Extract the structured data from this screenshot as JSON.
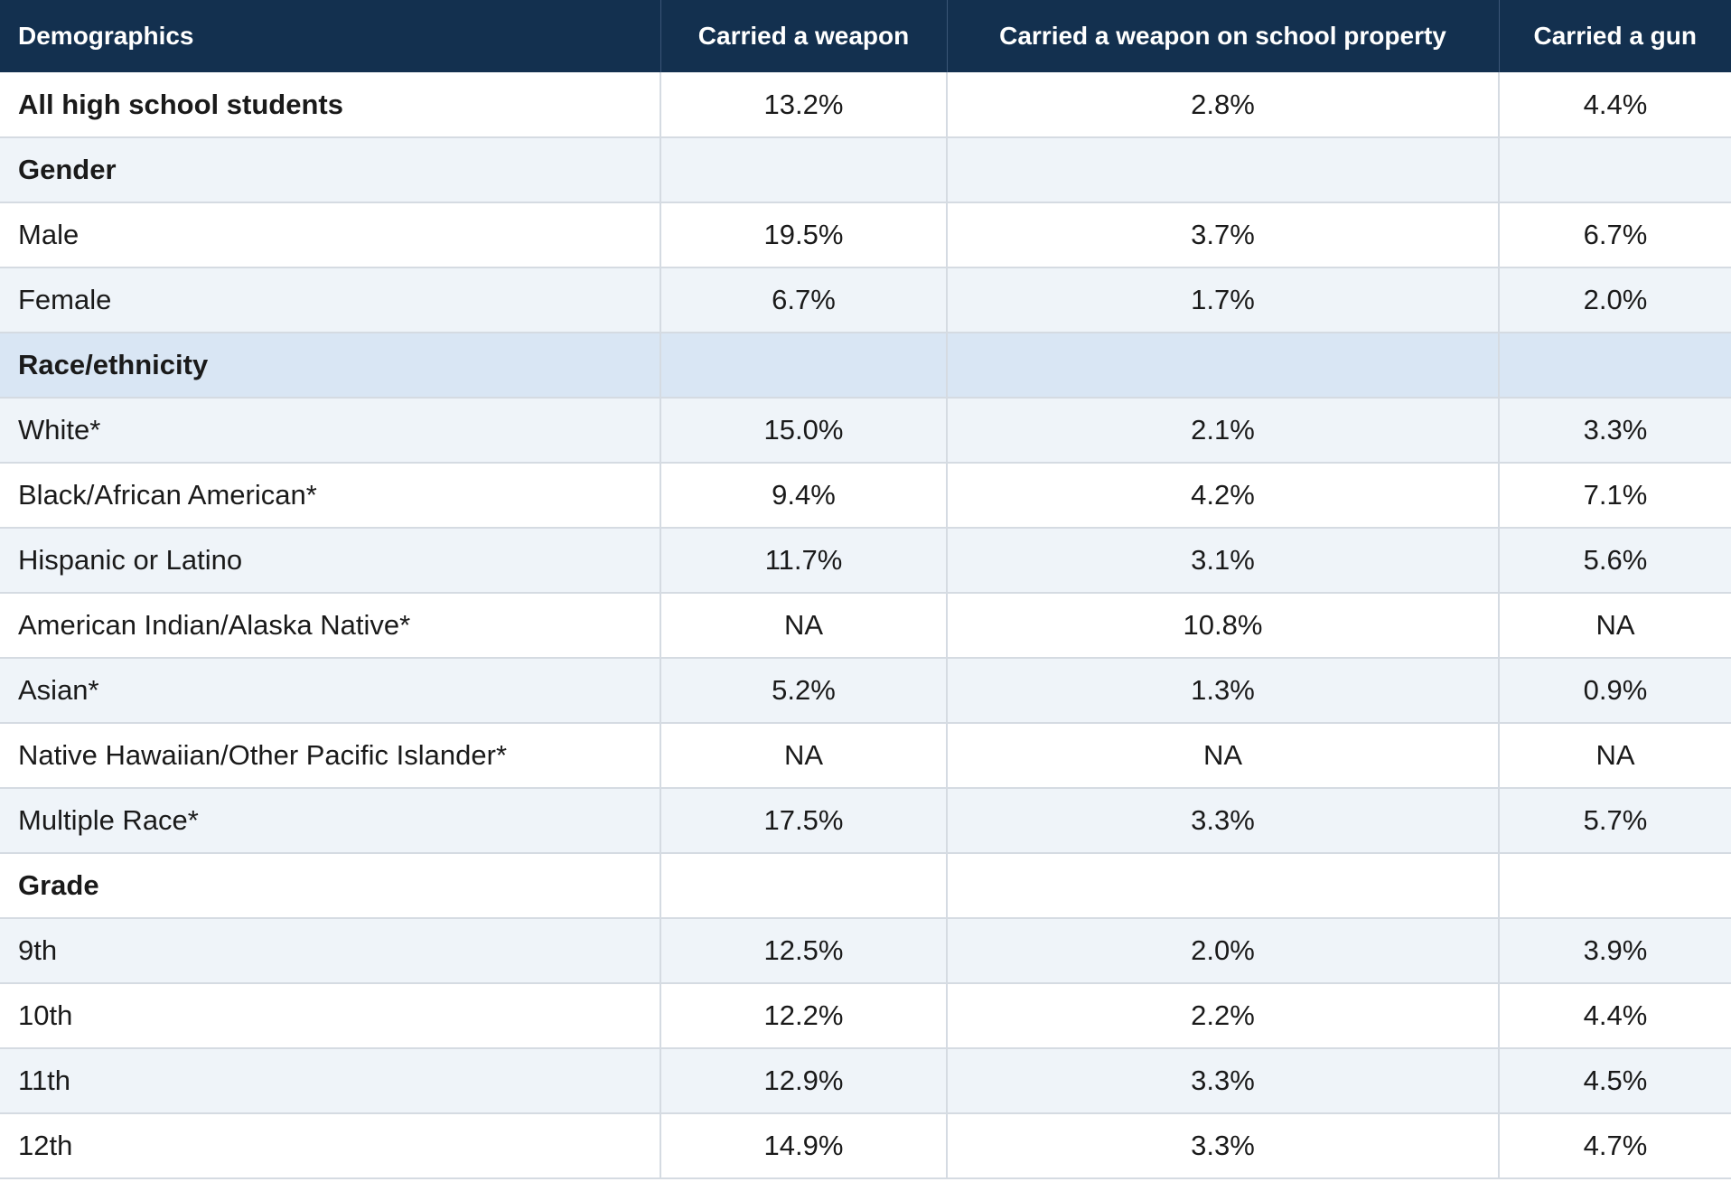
{
  "table": {
    "headers": [
      "Demographics",
      "Carried a weapon",
      "Carried a weapon on school property",
      "Carried a gun"
    ],
    "rows": [
      {
        "label": "All high school students",
        "values": [
          "13.2%",
          "2.8%",
          "4.4%"
        ],
        "bold": true,
        "shade": "white"
      },
      {
        "label": "Gender",
        "values": [
          "",
          "",
          ""
        ],
        "bold": true,
        "shade": "alt"
      },
      {
        "label": "Male",
        "values": [
          "19.5%",
          "3.7%",
          "6.7%"
        ],
        "bold": false,
        "shade": "white"
      },
      {
        "label": "Female",
        "values": [
          "6.7%",
          "1.7%",
          "2.0%"
        ],
        "bold": false,
        "shade": "alt"
      },
      {
        "label": "Race/ethnicity",
        "values": [
          "",
          "",
          ""
        ],
        "bold": true,
        "shade": "blue"
      },
      {
        "label": "White*",
        "values": [
          "15.0%",
          "2.1%",
          "3.3%"
        ],
        "bold": false,
        "shade": "alt"
      },
      {
        "label": "Black/African American*",
        "values": [
          "9.4%",
          "4.2%",
          "7.1%"
        ],
        "bold": false,
        "shade": "white"
      },
      {
        "label": "Hispanic or Latino",
        "values": [
          "11.7%",
          "3.1%",
          "5.6%"
        ],
        "bold": false,
        "shade": "alt"
      },
      {
        "label": "American Indian/Alaska Native*",
        "values": [
          "NA",
          "10.8%",
          "NA"
        ],
        "bold": false,
        "shade": "white"
      },
      {
        "label": "Asian*",
        "values": [
          "5.2%",
          "1.3%",
          "0.9%"
        ],
        "bold": false,
        "shade": "alt"
      },
      {
        "label": "Native Hawaiian/Other Pacific Islander*",
        "values": [
          "NA",
          "NA",
          "NA"
        ],
        "bold": false,
        "shade": "white"
      },
      {
        "label": "Multiple Race*",
        "values": [
          "17.5%",
          "3.3%",
          "5.7%"
        ],
        "bold": false,
        "shade": "alt"
      },
      {
        "label": "Grade",
        "values": [
          "",
          "",
          ""
        ],
        "bold": true,
        "shade": "white"
      },
      {
        "label": "9th",
        "values": [
          "12.5%",
          "2.0%",
          "3.9%"
        ],
        "bold": false,
        "shade": "alt"
      },
      {
        "label": "10th",
        "values": [
          "12.2%",
          "2.2%",
          "4.4%"
        ],
        "bold": false,
        "shade": "white"
      },
      {
        "label": "11th",
        "values": [
          "12.9%",
          "3.3%",
          "4.5%"
        ],
        "bold": false,
        "shade": "alt"
      },
      {
        "label": "12th",
        "values": [
          "14.9%",
          "3.3%",
          "4.7%"
        ],
        "bold": false,
        "shade": "white"
      }
    ]
  },
  "colors": {
    "header_bg": "#13304f",
    "header_text": "#ffffff",
    "row_alt_bg": "#eff4f9",
    "row_highlight_bg": "#d9e6f4",
    "grid": "#d5dbe2"
  }
}
